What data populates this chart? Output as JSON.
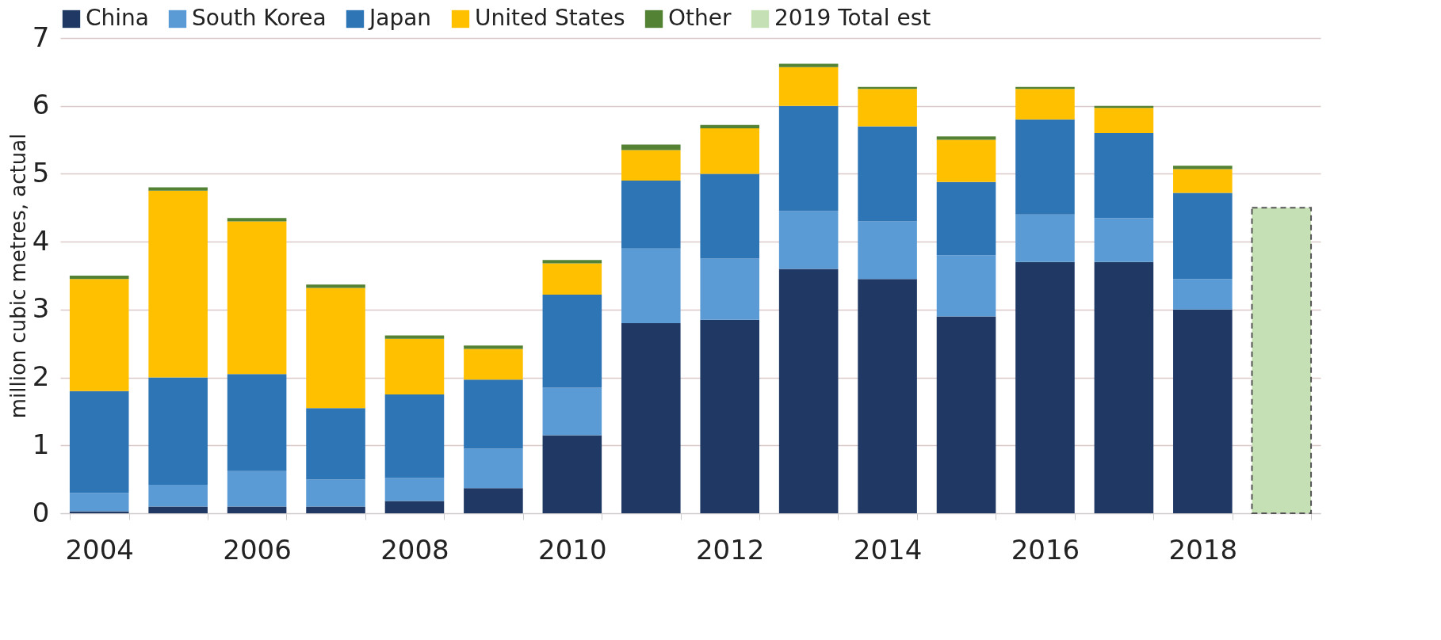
{
  "chart_data": {
    "type": "bar",
    "stacked": true,
    "ylabel": "million cubic metres, actual",
    "categories": [
      "2004",
      null,
      "2006",
      null,
      "2008",
      null,
      "2010",
      null,
      "2012",
      null,
      "2014",
      null,
      "2016",
      null,
      "2018",
      null
    ],
    "series": [
      {
        "name": "China",
        "color": "#1f3864",
        "values": [
          0.03,
          0.1,
          0.1,
          0.1,
          0.18,
          0.37,
          1.15,
          2.8,
          2.85,
          3.6,
          3.45,
          2.9,
          3.7,
          3.7,
          3.0,
          null
        ]
      },
      {
        "name": "South Korea",
        "color": "#5b9bd5",
        "values": [
          0.27,
          0.32,
          0.52,
          0.4,
          0.34,
          0.58,
          0.7,
          1.1,
          0.9,
          0.85,
          0.85,
          0.9,
          0.7,
          0.65,
          0.45,
          null
        ]
      },
      {
        "name": "Japan",
        "color": "#2e75b6",
        "values": [
          1.5,
          1.58,
          1.43,
          1.05,
          1.23,
          1.02,
          1.37,
          1.0,
          1.25,
          1.55,
          1.4,
          1.08,
          1.4,
          1.25,
          1.27,
          null
        ]
      },
      {
        "name": "United States",
        "color": "#ffc000",
        "values": [
          1.65,
          2.75,
          2.25,
          1.77,
          0.82,
          0.45,
          0.46,
          0.45,
          0.67,
          0.57,
          0.55,
          0.62,
          0.45,
          0.37,
          0.35,
          null
        ]
      },
      {
        "name": "Other",
        "color": "#548235",
        "values": [
          0.05,
          0.05,
          0.05,
          0.05,
          0.05,
          0.05,
          0.05,
          0.08,
          0.05,
          0.05,
          0.03,
          0.05,
          0.03,
          0.03,
          0.05,
          null
        ]
      },
      {
        "name": "2019 Total est",
        "color": "#c5e0b4",
        "line_style": "dashed",
        "values": [
          null,
          null,
          null,
          null,
          null,
          null,
          null,
          null,
          null,
          null,
          null,
          null,
          null,
          null,
          null,
          4.5
        ]
      }
    ],
    "ylim": [
      0,
      7
    ],
    "yticks": [
      0,
      1,
      2,
      3,
      4,
      5,
      6,
      7
    ],
    "grid": "y",
    "legend": "top"
  }
}
